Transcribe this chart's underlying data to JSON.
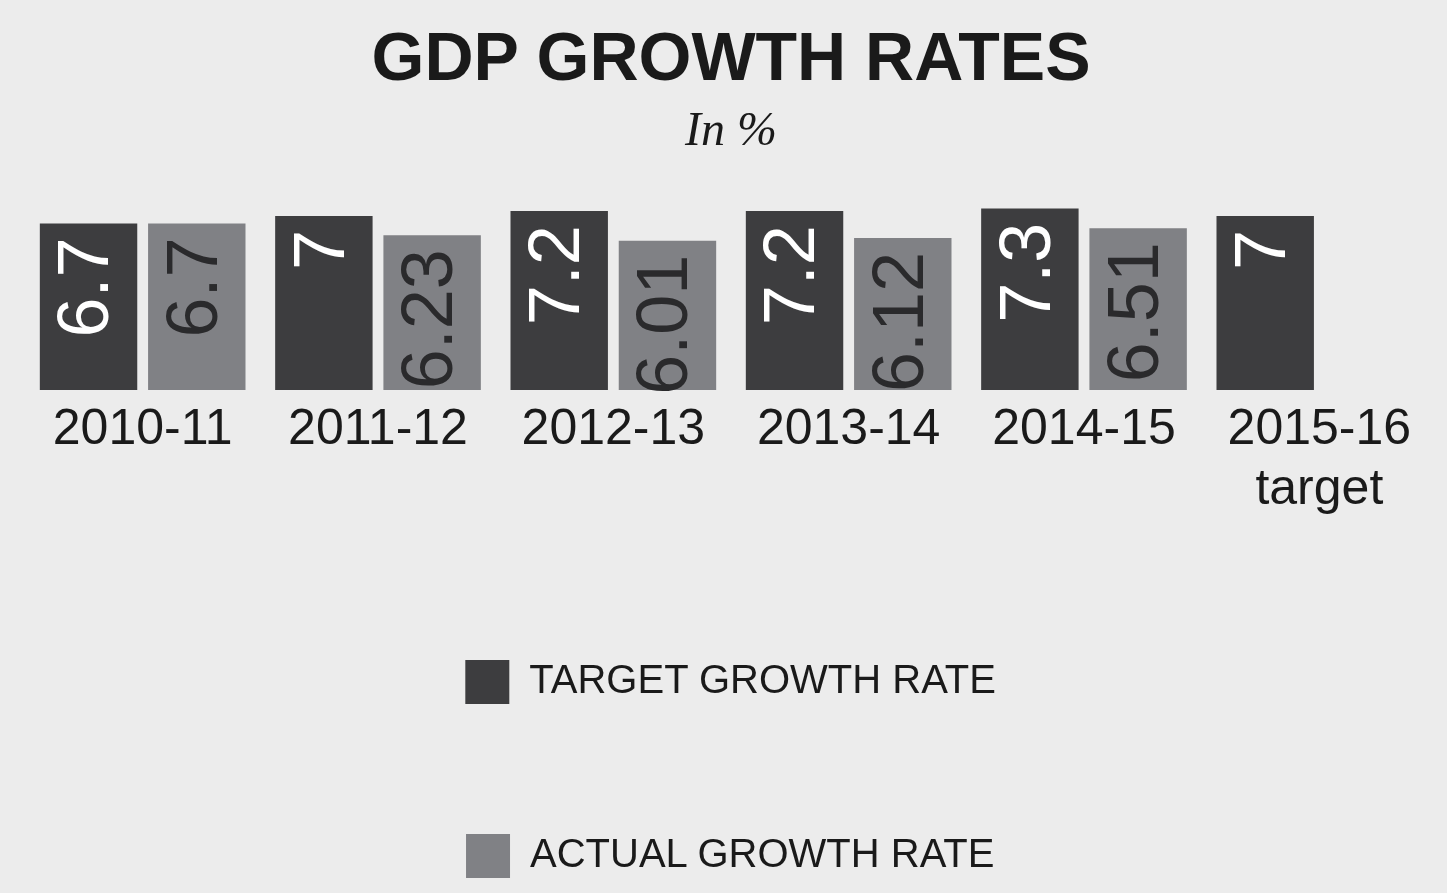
{
  "chart_data": {
    "type": "bar",
    "title": "GDP GROWTH RATES",
    "subtitle": "In %",
    "categories": [
      "2010-11",
      "2011-12",
      "2012-13",
      "2013-14",
      "2014-15",
      "2015-16\ntarget"
    ],
    "series": [
      {
        "name": "TARGET GROWTH RATE",
        "color": "#3d3d3f",
        "values": [
          6.7,
          7,
          7.2,
          7.2,
          7.3,
          7
        ]
      },
      {
        "name": "ACTUAL GROWTH RATE",
        "color": "#808185",
        "values": [
          6.7,
          6.23,
          6.01,
          6.12,
          6.51,
          null
        ]
      }
    ],
    "data_labels": true,
    "grid": false,
    "legend": "bottom",
    "tick_labels": "x"
  }
}
